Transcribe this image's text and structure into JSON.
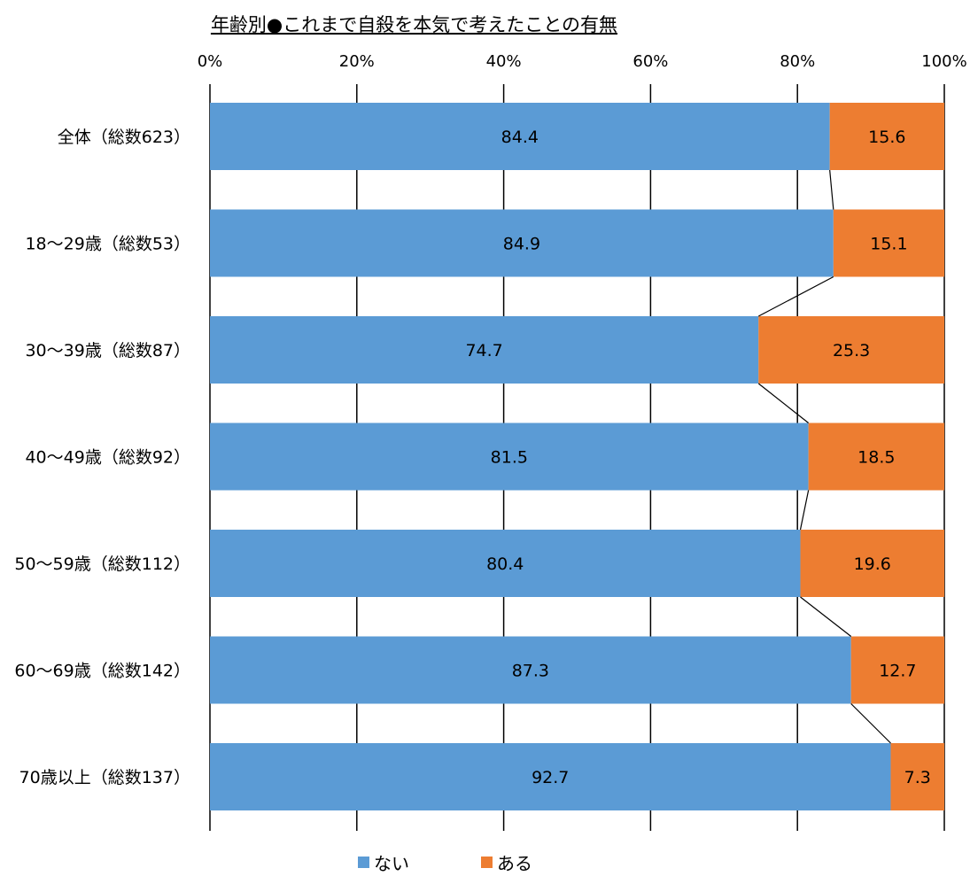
{
  "chart_data": {
    "type": "bar",
    "orientation": "horizontal",
    "stacked": "percent",
    "title": "年齢別●これまで自殺を本気で考えたことの有無",
    "categories": [
      "全体（総数623）",
      "18〜29歳（総数53）",
      "30〜39歳（総数87）",
      "40〜49歳（総数92）",
      "50〜59歳（総数112）",
      "60〜69歳（総数142）",
      "70歳以上（総数137）"
    ],
    "series": [
      {
        "name": "ない",
        "color": "#5b9bd5",
        "values": [
          84.4,
          84.9,
          74.7,
          81.5,
          80.4,
          87.3,
          92.7
        ]
      },
      {
        "name": "ある",
        "color": "#ed7d31",
        "values": [
          15.6,
          15.1,
          25.3,
          18.5,
          19.6,
          12.7,
          7.3
        ]
      }
    ],
    "xlim": [
      0,
      100
    ],
    "x_ticks": [
      "0%",
      "20%",
      "40%",
      "60%",
      "80%",
      "100%"
    ],
    "x_tick_values": [
      0,
      20,
      40,
      60,
      80,
      100
    ],
    "xaxis_position": "top",
    "grid": true,
    "series_lines": true,
    "legend_position": "bottom"
  }
}
